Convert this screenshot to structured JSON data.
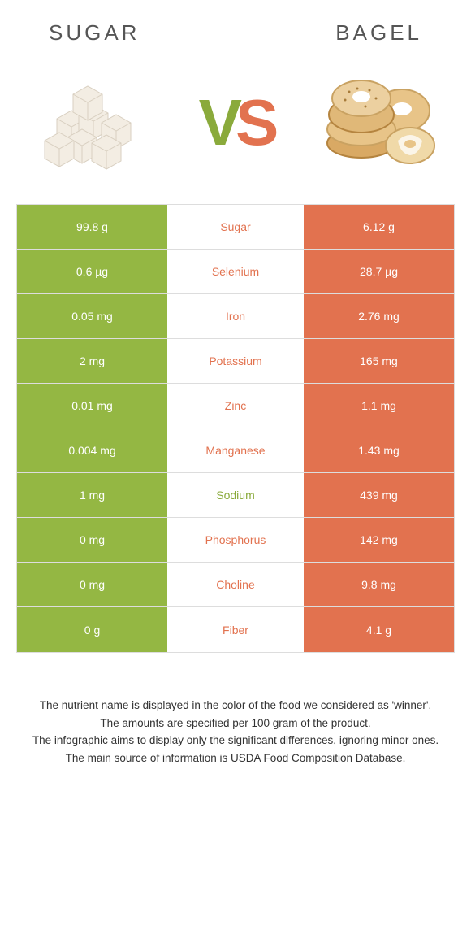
{
  "header": {
    "left": "SUGAR",
    "right": "BAGEL"
  },
  "vs": {
    "v": "V",
    "s": "S"
  },
  "colors": {
    "left_bg": "#94b743",
    "right_bg": "#e2724f",
    "mid_bg": "#ffffff",
    "left_text_color": "#e2724f",
    "right_text_color": "#e2724f",
    "sodium_text_color": "#8aaa3b",
    "border": "#dddddd"
  },
  "table": {
    "rows": [
      {
        "left": "99.8 g",
        "mid": "Sugar",
        "right": "6.12 g",
        "mid_color": "#e2724f"
      },
      {
        "left": "0.6 µg",
        "mid": "Selenium",
        "right": "28.7 µg",
        "mid_color": "#e2724f"
      },
      {
        "left": "0.05 mg",
        "mid": "Iron",
        "right": "2.76 mg",
        "mid_color": "#e2724f"
      },
      {
        "left": "2 mg",
        "mid": "Potassium",
        "right": "165 mg",
        "mid_color": "#e2724f"
      },
      {
        "left": "0.01 mg",
        "mid": "Zinc",
        "right": "1.1 mg",
        "mid_color": "#e2724f"
      },
      {
        "left": "0.004 mg",
        "mid": "Manganese",
        "right": "1.43 mg",
        "mid_color": "#e2724f"
      },
      {
        "left": "1 mg",
        "mid": "Sodium",
        "right": "439 mg",
        "mid_color": "#8aaa3b"
      },
      {
        "left": "0 mg",
        "mid": "Phosphorus",
        "right": "142 mg",
        "mid_color": "#e2724f"
      },
      {
        "left": "0 mg",
        "mid": "Choline",
        "right": "9.8 mg",
        "mid_color": "#e2724f"
      },
      {
        "left": "0 g",
        "mid": "Fiber",
        "right": "4.1 g",
        "mid_color": "#e2724f"
      }
    ]
  },
  "footnotes": {
    "line1": "The nutrient name is displayed in the color of the food we considered as 'winner'.",
    "line2": "The amounts are specified per 100 gram of the product.",
    "line3": "The infographic aims to display only the significant differences, ignoring minor ones.",
    "line4": "The main source of information is USDA Food Composition Database."
  }
}
